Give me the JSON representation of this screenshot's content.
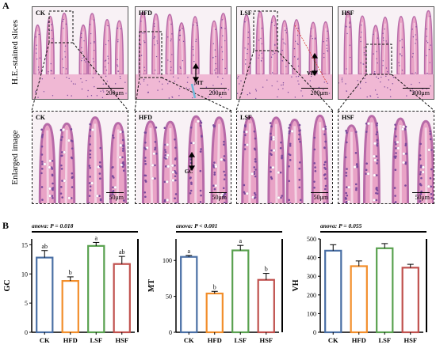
{
  "figure": {
    "panel_a_letter": "A",
    "panel_b_letter": "B",
    "row_labels": {
      "slices": "H.E.-stained slices",
      "enlarged": "Enlarged image"
    }
  },
  "micrographs": {
    "top": [
      {
        "label": "CK",
        "scale": "200μm"
      },
      {
        "label": "HFD",
        "scale": "200μm",
        "annotation": "MT"
      },
      {
        "label": "LSF",
        "scale": "200μm",
        "annotation": "VH"
      },
      {
        "label": "HSF",
        "scale": "200μm"
      }
    ],
    "bottom": [
      {
        "label": "CK",
        "scale": "50μm"
      },
      {
        "label": "HFD",
        "scale": "50μm",
        "annotation": "GC"
      },
      {
        "label": "LSF",
        "scale": "50μm"
      },
      {
        "label": "HSF",
        "scale": "50μm"
      }
    ],
    "colors": {
      "tissue": "#e9a3c6",
      "tissue_dark": "#b76aa8",
      "nuclei": "#7b4a9c",
      "background": "#f8f1f5"
    }
  },
  "chart_data": [
    {
      "type": "bar",
      "title": "anova: P = 0.018",
      "ylabel": "GC",
      "categories": [
        "CK",
        "HFD",
        "LSF",
        "HSF"
      ],
      "values": [
        12.8,
        8.8,
        14.8,
        11.7
      ],
      "errors": [
        1.2,
        0.7,
        0.6,
        1.3
      ],
      "letters": [
        "ab",
        "b",
        "a",
        "ab"
      ],
      "ylim": [
        0,
        16
      ],
      "yticks": [
        0,
        5,
        10,
        15
      ],
      "colors": [
        "#4a6fa5",
        "#f28e2b",
        "#59a14f",
        "#c0504d"
      ]
    },
    {
      "type": "bar",
      "title": "anova: P < 0.001",
      "ylabel": "MT",
      "categories": [
        "CK",
        "HFD",
        "LSF",
        "HSF"
      ],
      "values": [
        105,
        54,
        114,
        73
      ],
      "errors": [
        2,
        3,
        7,
        9
      ],
      "letters": [
        "a",
        "b",
        "a",
        "b"
      ],
      "ylim": [
        0,
        130
      ],
      "yticks": [
        0,
        50,
        100
      ],
      "colors": [
        "#4a6fa5",
        "#f28e2b",
        "#59a14f",
        "#c0504d"
      ]
    },
    {
      "type": "bar",
      "title": "anova: P = 0.055",
      "ylabel": "VH",
      "categories": [
        "CK",
        "HFD",
        "LSF",
        "HSF"
      ],
      "values": [
        437,
        354,
        450,
        346
      ],
      "errors": [
        32,
        28,
        25,
        18
      ],
      "letters": [
        "",
        "",
        "",
        ""
      ],
      "ylim": [
        0,
        500
      ],
      "yticks": [
        0,
        100,
        200,
        300,
        400,
        500
      ],
      "colors": [
        "#4a6fa5",
        "#f28e2b",
        "#59a14f",
        "#c0504d"
      ]
    }
  ]
}
